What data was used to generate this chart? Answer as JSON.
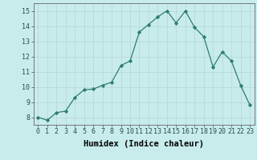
{
  "x": [
    0,
    1,
    2,
    3,
    4,
    5,
    6,
    7,
    8,
    9,
    10,
    11,
    12,
    13,
    14,
    15,
    16,
    17,
    18,
    19,
    20,
    21,
    22,
    23
  ],
  "y": [
    8.0,
    7.8,
    8.3,
    8.4,
    9.3,
    9.8,
    9.85,
    10.1,
    10.3,
    11.4,
    11.7,
    13.6,
    14.1,
    14.6,
    15.0,
    14.2,
    15.0,
    13.9,
    13.3,
    11.3,
    12.3,
    11.7,
    10.1,
    8.8
  ],
  "line_color": "#2e7d6e",
  "marker": "D",
  "marker_size": 2.2,
  "bg_color": "#c8ecec",
  "grid_color": "#b8d8d8",
  "xlabel": "Humidex (Indice chaleur)",
  "xlim": [
    -0.5,
    23.5
  ],
  "ylim": [
    7.5,
    15.5
  ],
  "yticks": [
    8,
    9,
    10,
    11,
    12,
    13,
    14,
    15
  ],
  "xticks": [
    0,
    1,
    2,
    3,
    4,
    5,
    6,
    7,
    8,
    9,
    10,
    11,
    12,
    13,
    14,
    15,
    16,
    17,
    18,
    19,
    20,
    21,
    22,
    23
  ],
  "xlabel_fontsize": 7.5,
  "tick_fontsize": 6.0
}
